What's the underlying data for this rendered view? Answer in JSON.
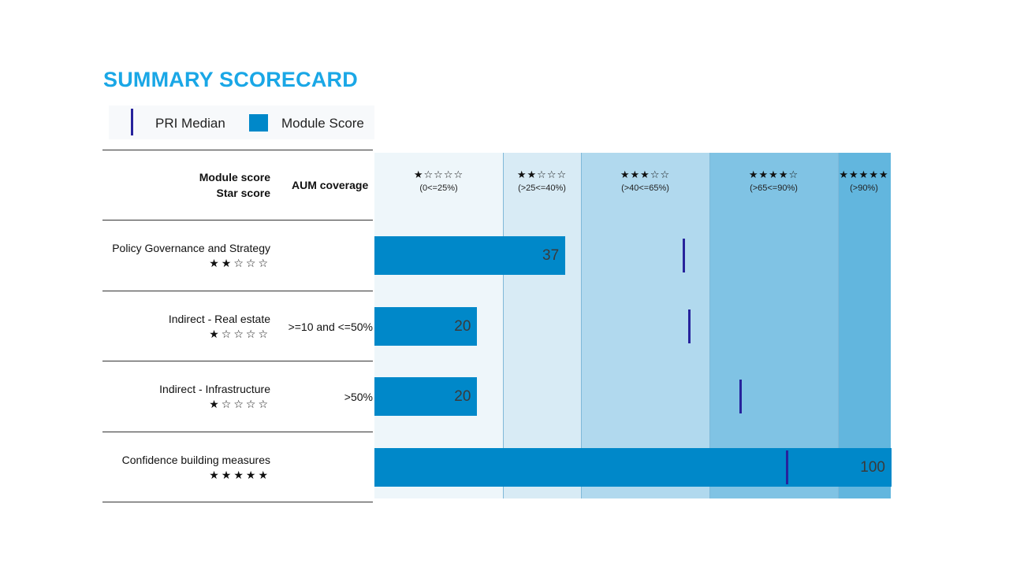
{
  "title": "SUMMARY SCORECARD",
  "legend": {
    "median_label": "PRI Median",
    "score_label": "Module Score"
  },
  "header": {
    "module_score": "Module score",
    "star_score": "Star score",
    "aum_coverage": "AUM coverage"
  },
  "colors": {
    "title": "#1aa7e6",
    "bar": "#0088c9",
    "median": "#27239c",
    "bands": [
      "#eef6fa",
      "#d8ebf5",
      "#b1d9ee",
      "#80c3e4",
      "#62b6de"
    ]
  },
  "chart_data": {
    "type": "bar",
    "orientation": "horizontal",
    "xlim": [
      0,
      100
    ],
    "bands": [
      {
        "stars": "★☆☆☆☆",
        "range": "(0<=25%)",
        "from": 0,
        "to": 25
      },
      {
        "stars": "★★☆☆☆",
        "range": "(>25<=40%)",
        "from": 25,
        "to": 40
      },
      {
        "stars": "★★★☆☆",
        "range": "(>40<=65%)",
        "from": 40,
        "to": 65
      },
      {
        "stars": "★★★★☆",
        "range": "(>65<=90%)",
        "from": 65,
        "to": 90
      },
      {
        "stars": "★★★★★",
        "range": "(>90%)",
        "from": 90,
        "to": 100
      }
    ],
    "rows": [
      {
        "label": "Policy Governance and Strategy",
        "stars": "★★☆☆☆",
        "aum": "",
        "score": 37,
        "median": 60
      },
      {
        "label": "Indirect - Real estate",
        "stars": "★☆☆☆☆",
        "aum": ">=10 and <=50%",
        "score": 20,
        "median": 61
      },
      {
        "label": "Indirect - Infrastructure",
        "stars": "★☆☆☆☆",
        "aum": ">50%",
        "score": 20,
        "median": 71
      },
      {
        "label": "Confidence building measures",
        "stars": "★★★★★",
        "aum": "",
        "score": 100,
        "median": 80
      }
    ]
  }
}
